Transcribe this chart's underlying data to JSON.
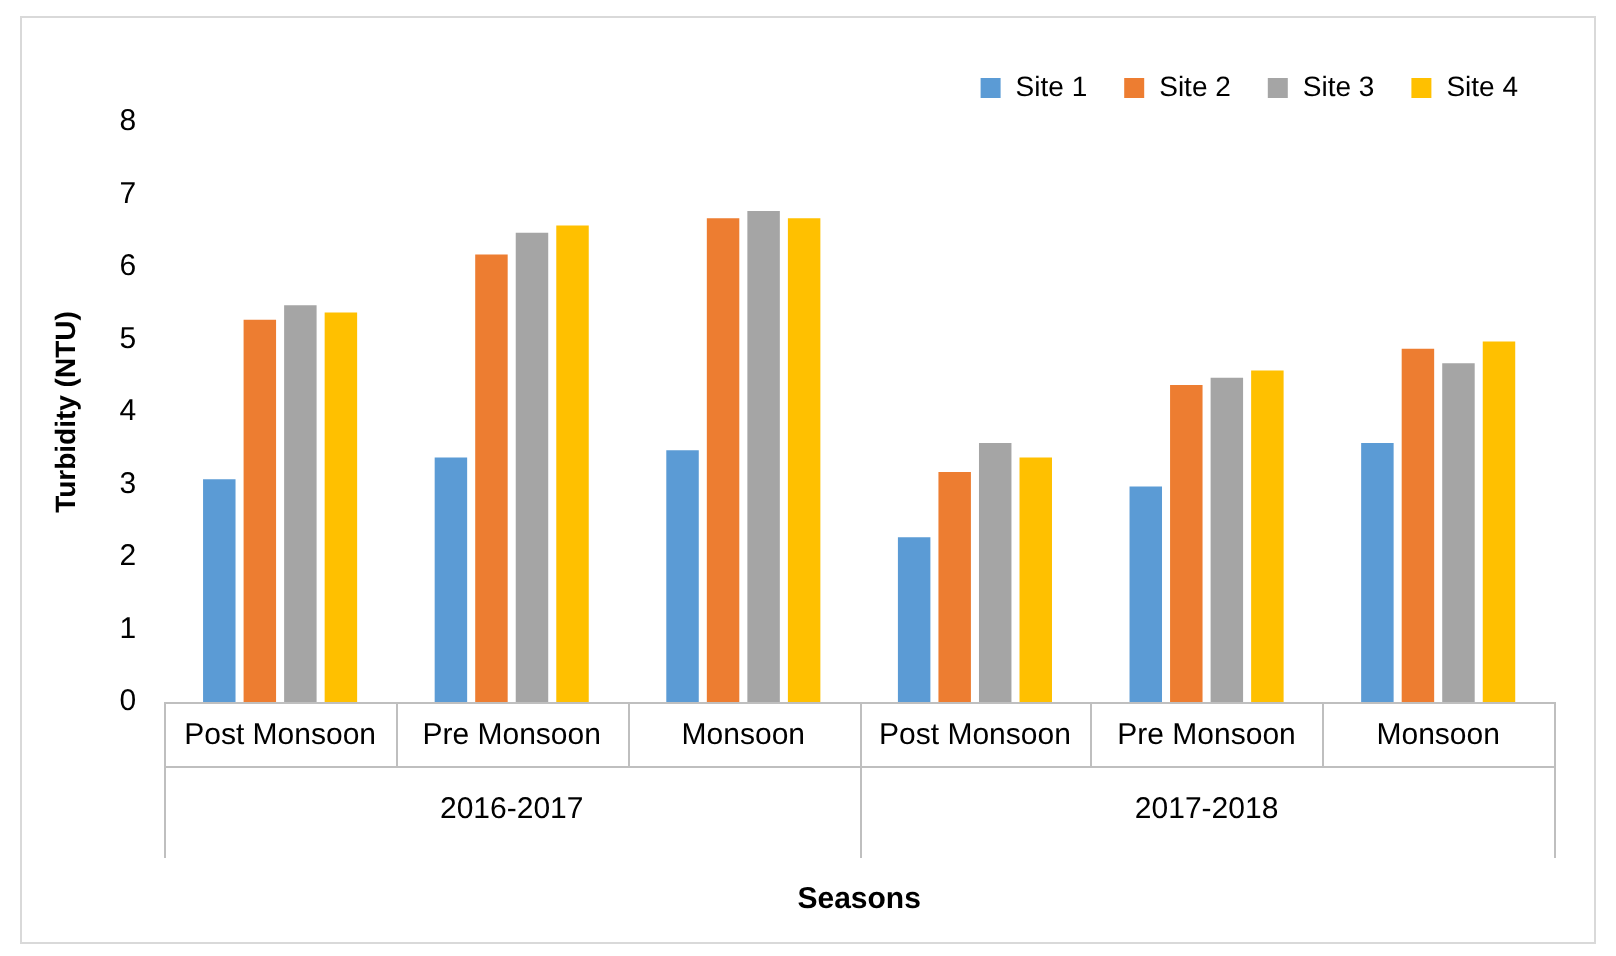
{
  "chart_data": {
    "type": "bar",
    "xlabel": "Seasons",
    "ylabel": "Turbidity (NTU)",
    "categories": [
      "Post Monsoon",
      "Pre Monsoon",
      "Monsoon",
      "Post Monsoon",
      "Pre Monsoon",
      "Monsoon"
    ],
    "annotations": [
      "2016-2017",
      "2017-2018"
    ],
    "series": [
      {
        "name": "Site 1",
        "color": "#5b9bd5",
        "values": [
          3.1,
          3.4,
          3.5,
          2.3,
          3.0,
          3.6
        ]
      },
      {
        "name": "Site 2",
        "color": "#ed7d31",
        "values": [
          5.3,
          6.2,
          6.7,
          3.2,
          4.4,
          4.9
        ]
      },
      {
        "name": "Site 3",
        "color": "#a5a5a5",
        "values": [
          5.5,
          6.5,
          6.8,
          3.6,
          4.5,
          4.7
        ]
      },
      {
        "name": "Site 4",
        "color": "#ffc000",
        "values": [
          5.4,
          6.6,
          6.7,
          3.4,
          4.6,
          5.0
        ]
      }
    ],
    "ylim": [
      0,
      8
    ],
    "yticks": [
      0,
      1,
      2,
      3,
      4,
      5,
      6,
      7,
      8
    ],
    "grid": false,
    "legend": "top right"
  }
}
